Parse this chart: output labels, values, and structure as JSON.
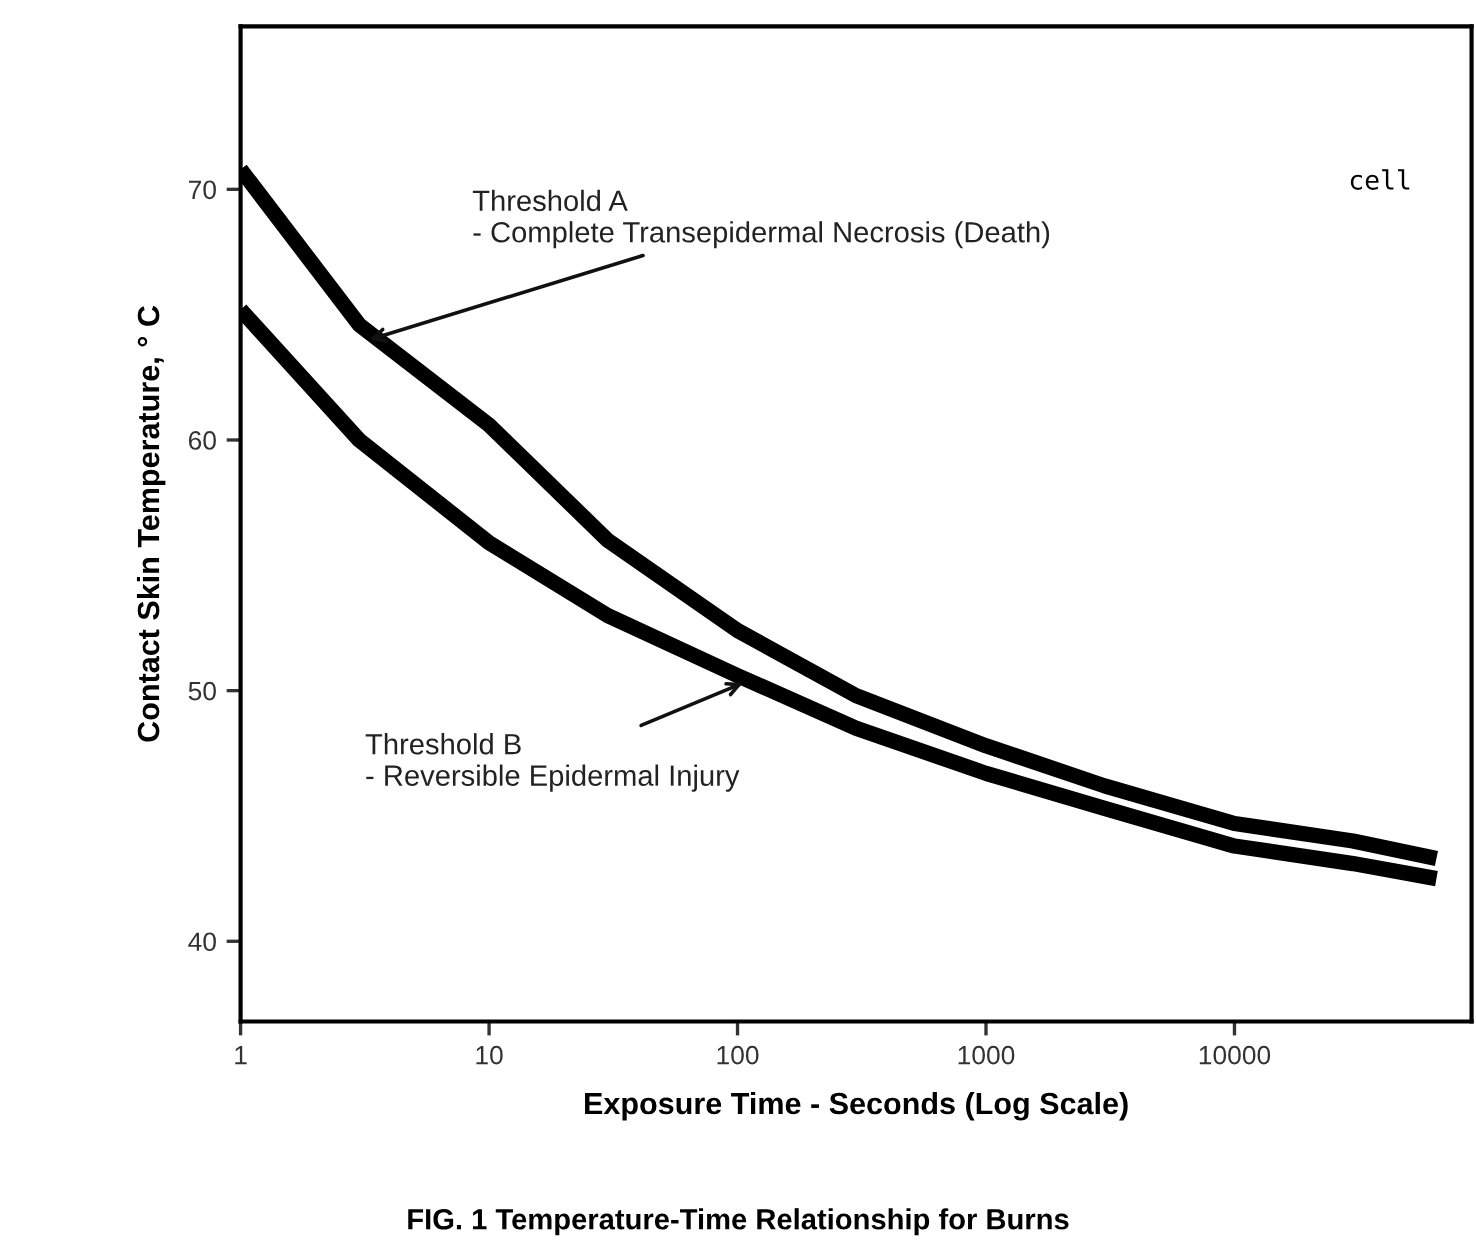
{
  "chart_data": {
    "type": "line",
    "xlabel": "Exposure Time - Seconds (Log Scale)",
    "ylabel": "Contact Skin Temperature, ° C",
    "log": "x",
    "xlim": [
      1,
      90000
    ],
    "xticks": [
      1,
      10,
      100,
      1000,
      10000
    ],
    "ylim": [
      36.8,
      76.5
    ],
    "yticks": [
      40,
      50,
      60,
      70
    ],
    "grid": false,
    "legend": false,
    "marker": "none",
    "line_style": "solid",
    "series": [
      {
        "color": "#000000",
        "x": [
          1,
          3,
          10,
          30,
          100,
          300,
          1000,
          3000,
          10000,
          30000,
          65000
        ],
        "values": [
          70.8,
          64.6,
          60.6,
          56.0,
          52.4,
          49.8,
          47.8,
          46.2,
          44.7,
          44.0,
          43.3
        ]
      },
      {
        "color": "#000000",
        "x": [
          1,
          3,
          10,
          30,
          100,
          300,
          1000,
          3000,
          10000,
          30000,
          65000
        ],
        "values": [
          65.2,
          60.0,
          55.9,
          53.0,
          50.6,
          48.5,
          46.7,
          45.3,
          43.8,
          43.1,
          42.5
        ]
      }
    ],
    "annotations": [
      {
        "text": "Threshold A\n- Complete Transepidermal Necrosis (Death)",
        "x": 3.3,
        "y": 64.0
      },
      "cell",
      {
        "text": "Threshold B\n- Reversible Epidermal Injury",
        "x": 105,
        "y": 50.3
      },
      "FIG. 1 Temperature-Time Relationship for Burns"
    ]
  }
}
